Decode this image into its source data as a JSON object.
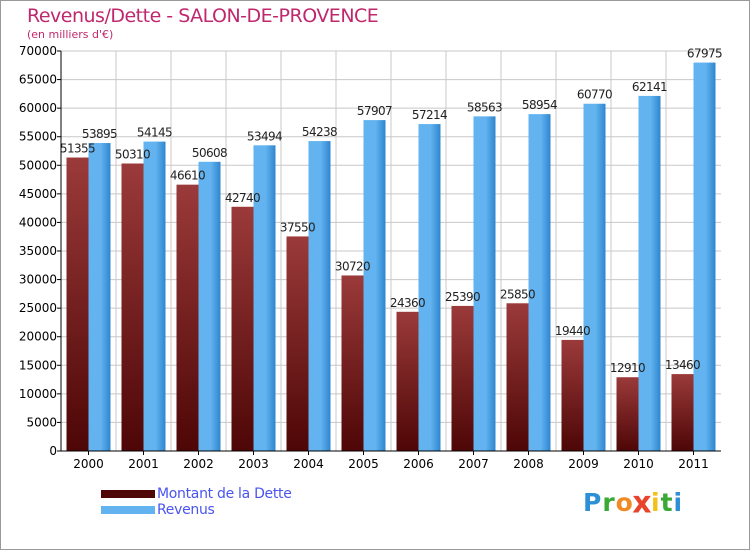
{
  "header": {
    "title": "Revenus/Dette - SALON-DE-PROVENCE",
    "subtitle": "(en milliers d'€)"
  },
  "colors": {
    "title": "#c0286e",
    "subtitle": "#c0286e",
    "legend_text": "#4a54ee",
    "dette_top": "#9b3a3a",
    "dette_bottom": "#4e0606",
    "revenus_light": "#62b3ef",
    "revenus_dark": "#2f86cf",
    "axis": "#000000",
    "grid": "#c8c8c8"
  },
  "chart_data": {
    "type": "bar",
    "categories": [
      "2000",
      "2001",
      "2002",
      "2003",
      "2004",
      "2005",
      "2006",
      "2007",
      "2008",
      "2009",
      "2010",
      "2011"
    ],
    "series": [
      {
        "name": "Montant de la Dette",
        "values": [
          51355,
          50310,
          46610,
          42740,
          37550,
          30720,
          24360,
          25390,
          25850,
          19440,
          12910,
          13460
        ],
        "labels": [
          "51355",
          "50310",
          "46610",
          "42740",
          "37550",
          "30720",
          "24360",
          "25390",
          "25850",
          "19440",
          "12910",
          "13460"
        ]
      },
      {
        "name": "Revenus",
        "values": [
          53895,
          54145,
          50608,
          53494,
          54238,
          57907,
          57214,
          58563,
          58954,
          60770,
          62141,
          67975
        ],
        "labels": [
          "53895",
          "54145",
          "50608",
          "53494",
          "54238",
          "57907",
          "57214",
          "58563",
          "58954",
          "60770",
          "62141",
          "67975"
        ]
      }
    ],
    "yticks": [
      "0",
      "5000",
      "10000",
      "15000",
      "20000",
      "25000",
      "30000",
      "35000",
      "40000",
      "45000",
      "50000",
      "55000",
      "60000",
      "65000",
      "70000"
    ],
    "ylim": [
      0,
      70000
    ],
    "grid": true,
    "legend_position": "bottom-left"
  },
  "legend": {
    "items": [
      {
        "label": "Montant de la Dette"
      },
      {
        "label": "Revenus"
      }
    ]
  },
  "logo": {
    "letters": [
      "P",
      "r",
      "o",
      "x",
      "i",
      "t",
      "i"
    ],
    "colors": [
      "#2d8fd6",
      "#3aa935",
      "#f08a24",
      "#e8432b",
      "#f2c21b",
      "#3aa935",
      "#2d8fd6"
    ]
  }
}
